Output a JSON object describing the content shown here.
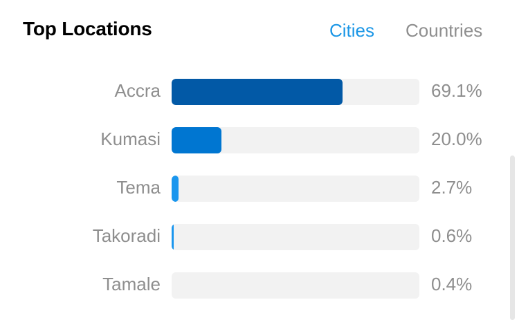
{
  "header": {
    "title": "Top Locations",
    "tabs": [
      {
        "label": "Cities",
        "active": true
      },
      {
        "label": "Countries",
        "active": false
      }
    ]
  },
  "locations": [
    {
      "name": "Accra",
      "percent_label": "69.1%",
      "percent": 69.1,
      "color": "#0259a6"
    },
    {
      "name": "Kumasi",
      "percent_label": "20.0%",
      "percent": 20.0,
      "color": "#0076d1"
    },
    {
      "name": "Tema",
      "percent_label": "2.7%",
      "percent": 2.7,
      "color": "#1a96ee"
    },
    {
      "name": "Takoradi",
      "percent_label": "0.6%",
      "percent": 0.6,
      "color": "#1a96ee"
    },
    {
      "name": "Tamale",
      "percent_label": "0.4%",
      "percent": 0.4,
      "color": "#1a96ee"
    }
  ],
  "colors": {
    "accent": "#1a96e6",
    "muted_text": "#8e8e8e",
    "track": "#f2f2f2"
  }
}
